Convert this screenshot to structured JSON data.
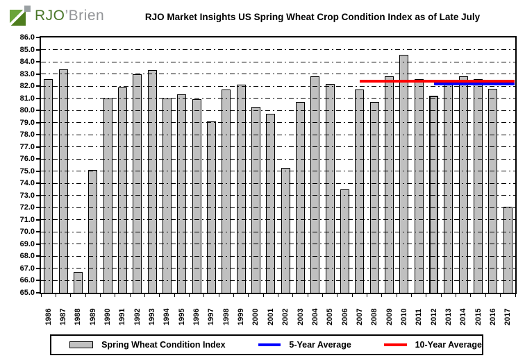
{
  "logo": {
    "text_primary": "RJO",
    "text_secondary": "’Brien"
  },
  "title": "RJO Market Insights US Spring Wheat Crop Condition Index as of Late July",
  "chart_data": {
    "type": "bar",
    "title": "RJO Market Insights US Spring Wheat Crop Condition Index as of Late July",
    "categories": [
      "1986",
      "1987",
      "1988",
      "1989",
      "1990",
      "1991",
      "1992",
      "1993",
      "1994",
      "1995",
      "1996",
      "1997",
      "1998",
      "1999",
      "2000",
      "2001",
      "2002",
      "2003",
      "2004",
      "2005",
      "2006",
      "2007",
      "2008",
      "2009",
      "2010",
      "2011",
      "2012",
      "2013",
      "2014",
      "2015",
      "2016",
      "2017"
    ],
    "values": [
      82.6,
      83.4,
      66.7,
      75.1,
      81.0,
      81.9,
      83.0,
      83.3,
      81.0,
      81.3,
      80.9,
      79.1,
      81.7,
      82.1,
      80.3,
      79.7,
      75.3,
      80.7,
      82.8,
      82.2,
      73.5,
      81.7,
      80.7,
      82.8,
      84.6,
      82.6,
      81.2,
      82.1,
      82.8,
      82.6,
      81.8,
      72.1
    ],
    "highlighted_year": "2012",
    "bar_color": "#c0c0c0",
    "ylim": [
      65.0,
      86.0
    ],
    "ytick_step": 1.0,
    "ytick_labels": [
      "86.0",
      "85.0",
      "84.0",
      "83.0",
      "82.0",
      "81.0",
      "80.0",
      "79.0",
      "78.0",
      "77.0",
      "76.0",
      "75.0",
      "74.0",
      "73.0",
      "72.0",
      "71.0",
      "70.0",
      "69.0",
      "68.0",
      "67.0",
      "66.0",
      "65.0"
    ],
    "grid": "horizontal-dash-dot",
    "legend_position": "bottom",
    "lines": [
      {
        "name": "5-Year Average",
        "color": "#0000ff",
        "value": 82.2,
        "start_year": "2012",
        "end_year": "2017"
      },
      {
        "name": "10-Year Average",
        "color": "#ff0000",
        "value": 82.4,
        "start_year": "2007",
        "end_year": "2017"
      }
    ]
  },
  "legend": {
    "items": [
      {
        "label": "Spring Wheat Condition Index",
        "swatch": "gray-bar"
      },
      {
        "label": "5-Year Average",
        "swatch": "blue-line",
        "color": "#0000ff"
      },
      {
        "label": "10-Year Average",
        "swatch": "red-line",
        "color": "#ff0000"
      }
    ]
  }
}
